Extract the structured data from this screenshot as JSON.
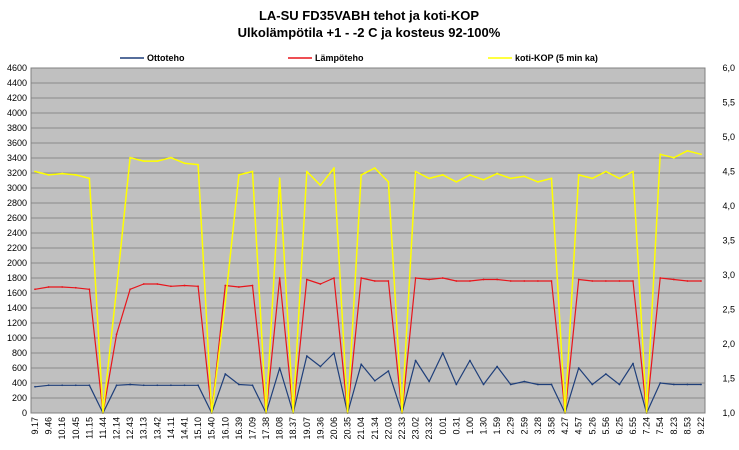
{
  "chart_data": {
    "type": "line",
    "title": "LA-SU FD35VABH  tehot ja koti-KOP",
    "subtitle": "Ulkolämpötila +1 - -2 C ja kosteus 92-100%",
    "xlabel": "",
    "ylabel": "",
    "grid": true,
    "legend_position": "top",
    "ylim": [
      0,
      4600
    ],
    "y2lim": [
      1.0,
      6.0
    ],
    "yticks": [
      "0",
      "200",
      "400",
      "600",
      "800",
      "1000",
      "1200",
      "1400",
      "1600",
      "1800",
      "2000",
      "2200",
      "2400",
      "2600",
      "2800",
      "3000",
      "3200",
      "3400",
      "3600",
      "3800",
      "4000",
      "4200",
      "4400",
      "4600"
    ],
    "y2ticks": [
      "1,0",
      "1,5",
      "2,0",
      "2,5",
      "3,0",
      "3,5",
      "4,0",
      "4,5",
      "5,0",
      "5,5",
      "6,0"
    ],
    "categories": [
      "9.17",
      "9.46",
      "10.16",
      "10.45",
      "11.15",
      "11.44",
      "12.14",
      "12.43",
      "13.13",
      "13.42",
      "14.11",
      "14.41",
      "15.10",
      "15.40",
      "16.10",
      "16.39",
      "17.09",
      "17.38",
      "18.08",
      "18.37",
      "19.07",
      "19.36",
      "20.06",
      "20.35",
      "21.04",
      "21.34",
      "22.03",
      "22.33",
      "23.02",
      "23.32",
      "0.01",
      "0.31",
      "1.00",
      "1.30",
      "1.59",
      "2.29",
      "2.59",
      "3.28",
      "3.58",
      "4.27",
      "4.57",
      "5.26",
      "5.56",
      "6.25",
      "6.55",
      "7.24",
      "7.54",
      "8.23",
      "8.53",
      "9.22"
    ],
    "series": [
      {
        "name": "Ottoteho",
        "axis": "left",
        "color": "#1f3f7a",
        "values": [
          350,
          370,
          370,
          370,
          370,
          0,
          370,
          380,
          370,
          370,
          370,
          370,
          370,
          0,
          520,
          380,
          370,
          0,
          600,
          0,
          760,
          620,
          800,
          0,
          650,
          430,
          560,
          0,
          700,
          420,
          800,
          380,
          700,
          380,
          620,
          380,
          420,
          380,
          380,
          0,
          600,
          380,
          520,
          380,
          660,
          0,
          400,
          380,
          380,
          380
        ]
      },
      {
        "name": "Lämpöteho",
        "axis": "left",
        "color": "#e8151b",
        "values": [
          1650,
          1680,
          1680,
          1670,
          1650,
          0,
          1050,
          1650,
          1720,
          1720,
          1690,
          1700,
          1690,
          0,
          1700,
          1680,
          1700,
          0,
          1800,
          0,
          1780,
          1720,
          1800,
          0,
          1800,
          1760,
          1760,
          0,
          1800,
          1780,
          1800,
          1760,
          1760,
          1780,
          1780,
          1760,
          1760,
          1760,
          1760,
          0,
          1780,
          1760,
          1760,
          1760,
          1760,
          0,
          1800,
          1780,
          1760,
          1760
        ]
      },
      {
        "name": "koti-KOP (5 min ka)",
        "axis": "right",
        "color": "#ffff00",
        "values": [
          4.5,
          4.45,
          4.47,
          4.45,
          4.4,
          1.0,
          2.8,
          4.7,
          4.65,
          4.65,
          4.7,
          4.62,
          4.6,
          1.0,
          2.6,
          4.45,
          4.5,
          1.0,
          4.4,
          1.0,
          4.5,
          4.3,
          4.55,
          1.0,
          4.45,
          4.55,
          4.35,
          1.0,
          4.5,
          4.4,
          4.45,
          4.35,
          4.45,
          4.38,
          4.47,
          4.4,
          4.43,
          4.35,
          4.4,
          1.0,
          4.45,
          4.4,
          4.5,
          4.4,
          4.5,
          1.0,
          4.75,
          4.7,
          4.8,
          4.75
        ]
      }
    ]
  }
}
